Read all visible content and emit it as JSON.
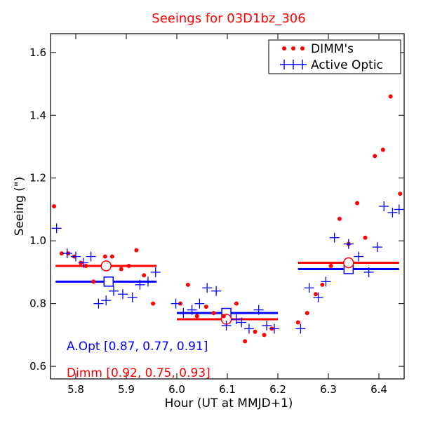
{
  "chart_data": {
    "type": "scatter",
    "title": "Seeings for 03D1bz_306",
    "xlabel": "Hour (UT at MMJD+1)",
    "ylabel": "Seeing (\")",
    "xlim": [
      5.75,
      6.45
    ],
    "ylim": [
      0.56,
      1.66
    ],
    "xticks": [
      5.8,
      5.9,
      6.0,
      6.1,
      6.2,
      6.3,
      6.4
    ],
    "xtick_labels": [
      "5.8",
      "5.9",
      "6.0",
      "6.1",
      "6.2",
      "6.3",
      "6.4"
    ],
    "yticks": [
      0.6,
      0.8,
      1.0,
      1.2,
      1.4,
      1.6
    ],
    "ytick_labels": [
      "0.6",
      "0.8",
      "1.0",
      "1.2",
      "1.4",
      "1.6"
    ],
    "colors": {
      "dimm": "#ff0000",
      "ao": "#0000ff",
      "title": "#ff0000"
    },
    "series": [
      {
        "name": "DIMM's",
        "marker": "dot",
        "points": [
          [
            5.757,
            1.11
          ],
          [
            5.772,
            0.96
          ],
          [
            5.785,
            0.96
          ],
          [
            5.797,
            0.95
          ],
          [
            5.81,
            0.93
          ],
          [
            5.82,
            0.92
          ],
          [
            5.835,
            0.87
          ],
          [
            5.858,
            0.95
          ],
          [
            5.872,
            0.95
          ],
          [
            5.89,
            0.91
          ],
          [
            5.905,
            0.92
          ],
          [
            5.92,
            0.97
          ],
          [
            5.935,
            0.89
          ],
          [
            5.953,
            0.8
          ],
          [
            6.007,
            0.8
          ],
          [
            6.022,
            0.86
          ],
          [
            6.04,
            0.76
          ],
          [
            6.058,
            0.79
          ],
          [
            6.073,
            0.77
          ],
          [
            6.093,
            0.76
          ],
          [
            6.118,
            0.8
          ],
          [
            6.135,
            0.68
          ],
          [
            6.155,
            0.71
          ],
          [
            6.173,
            0.7
          ],
          [
            6.188,
            0.72
          ],
          [
            6.24,
            0.74
          ],
          [
            6.258,
            0.77
          ],
          [
            6.275,
            0.83
          ],
          [
            6.288,
            0.86
          ],
          [
            6.305,
            0.92
          ],
          [
            6.322,
            1.07
          ],
          [
            6.34,
            0.99
          ],
          [
            6.357,
            1.12
          ],
          [
            6.373,
            1.01
          ],
          [
            6.392,
            1.27
          ],
          [
            6.408,
            1.29
          ],
          [
            6.423,
            1.46
          ],
          [
            6.442,
            1.15
          ]
        ]
      },
      {
        "name": "Active Optic",
        "marker": "plus",
        "points": [
          [
            5.762,
            1.04
          ],
          [
            5.783,
            0.96
          ],
          [
            5.8,
            0.95
          ],
          [
            5.815,
            0.93
          ],
          [
            5.83,
            0.95
          ],
          [
            5.845,
            0.8
          ],
          [
            5.86,
            0.81
          ],
          [
            5.875,
            0.84
          ],
          [
            5.893,
            0.83
          ],
          [
            5.912,
            0.82
          ],
          [
            5.927,
            0.86
          ],
          [
            5.943,
            0.87
          ],
          [
            5.958,
            0.9
          ],
          [
            5.998,
            0.8
          ],
          [
            6.013,
            0.77
          ],
          [
            6.03,
            0.78
          ],
          [
            6.045,
            0.8
          ],
          [
            6.06,
            0.85
          ],
          [
            6.078,
            0.84
          ],
          [
            6.098,
            0.73
          ],
          [
            6.118,
            0.75
          ],
          [
            6.128,
            0.74
          ],
          [
            6.143,
            0.72
          ],
          [
            6.162,
            0.78
          ],
          [
            6.178,
            0.73
          ],
          [
            6.193,
            0.72
          ],
          [
            6.245,
            0.72
          ],
          [
            6.262,
            0.85
          ],
          [
            6.28,
            0.82
          ],
          [
            6.295,
            0.87
          ],
          [
            6.312,
            1.01
          ],
          [
            6.34,
            0.99
          ],
          [
            6.36,
            0.95
          ],
          [
            6.38,
            0.9
          ],
          [
            6.397,
            0.98
          ],
          [
            6.41,
            1.11
          ],
          [
            6.427,
            1.09
          ],
          [
            6.44,
            1.1
          ]
        ]
      }
    ],
    "segments": [
      {
        "series": "Active Optic",
        "x": [
          5.76,
          5.96
        ],
        "y": 0.87,
        "marker_x": 5.865,
        "marker": "square"
      },
      {
        "series": "DIMM's",
        "x": [
          5.76,
          5.96
        ],
        "y": 0.92,
        "marker_x": 5.86,
        "marker": "circle"
      },
      {
        "series": "Active Optic",
        "x": [
          6.0,
          6.2
        ],
        "y": 0.77,
        "marker_x": 6.098,
        "marker": "square"
      },
      {
        "series": "DIMM's",
        "x": [
          6.0,
          6.2
        ],
        "y": 0.75,
        "marker_x": 6.098,
        "marker": "circle"
      },
      {
        "series": "Active Optic",
        "x": [
          6.24,
          6.44
        ],
        "y": 0.91,
        "marker_x": 6.34,
        "marker": "square"
      },
      {
        "series": "DIMM's",
        "x": [
          6.24,
          6.44
        ],
        "y": 0.93,
        "marker_x": 6.34,
        "marker": "circle"
      }
    ],
    "annotations": [
      {
        "name": "ao-summary",
        "text": "A.Opt [0.87, 0.77, 0.91]",
        "color": "#0000ff"
      },
      {
        "name": "dimm-summary",
        "text": "Dimm [0.92, 0.75, 0.93]",
        "color": "#ff0000"
      }
    ],
    "legend": {
      "placement": "top-right",
      "entries": [
        "DIMM's",
        "Active Optic"
      ]
    }
  }
}
